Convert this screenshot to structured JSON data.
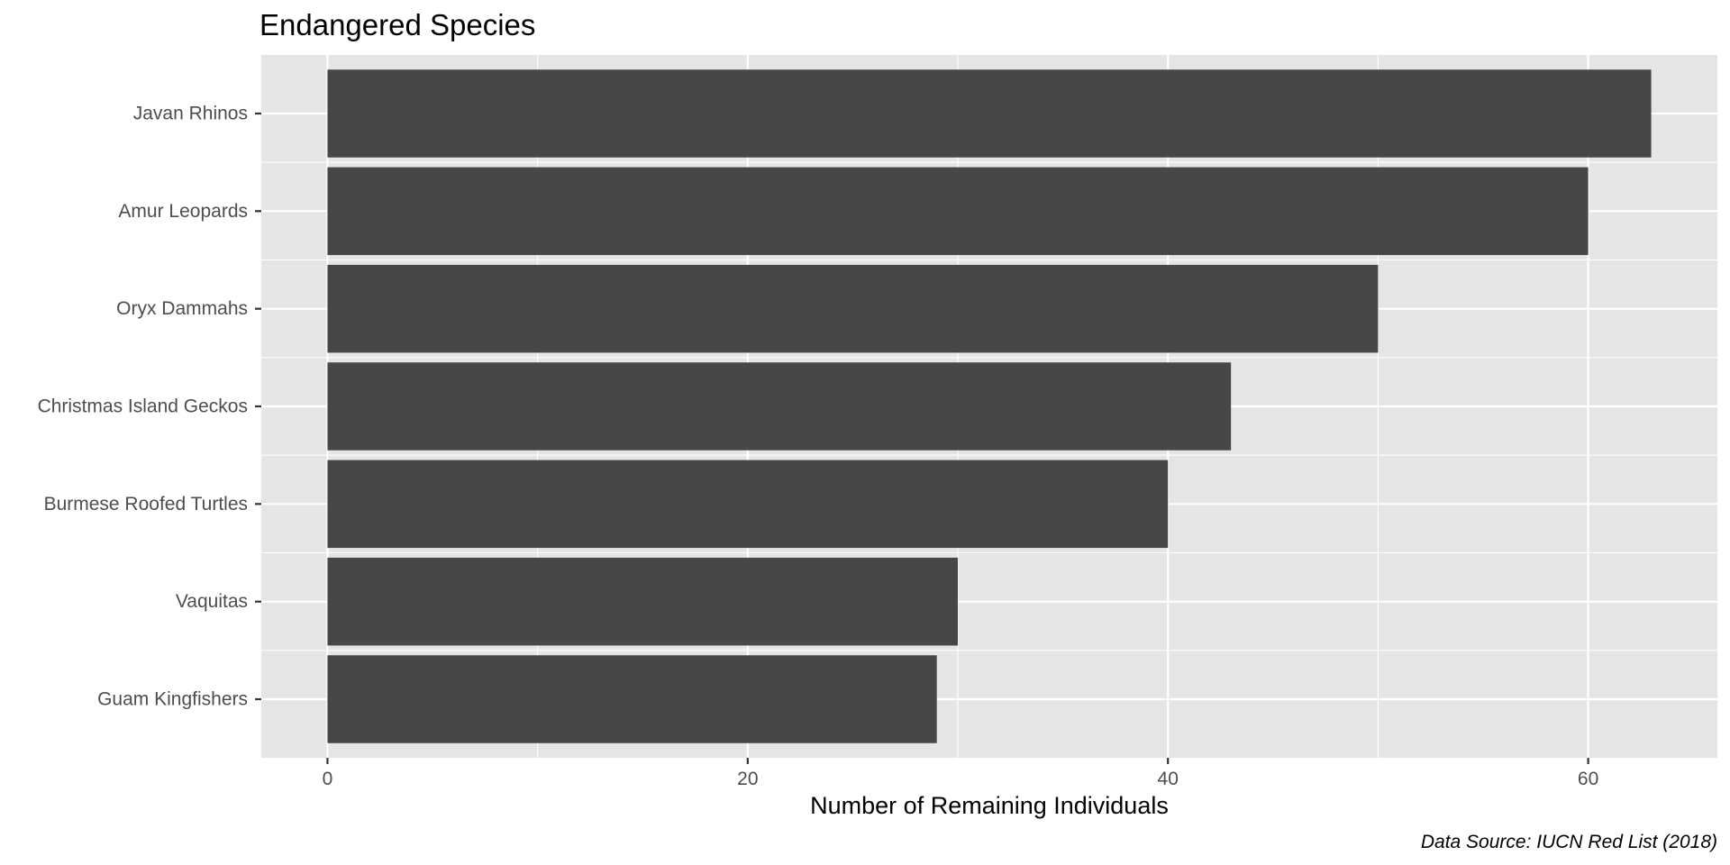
{
  "chart_data": {
    "type": "bar",
    "orientation": "horizontal",
    "title": "Endangered Species",
    "xlabel": "Number of Remaining Individuals",
    "ylabel": "",
    "caption": "Data Source: IUCN Red List (2018)",
    "categories": [
      "Javan Rhinos",
      "Amur Leopards",
      "Oryx Dammahs",
      "Christmas Island Geckos",
      "Burmese Roofed Turtles",
      "Vaquitas",
      "Guam Kingfishers"
    ],
    "values": [
      63,
      60,
      50,
      43,
      40,
      30,
      29
    ],
    "xlim": [
      -3.15,
      66.15
    ],
    "x_ticks": [
      0,
      20,
      40,
      60
    ],
    "grid": true,
    "legend": "none",
    "colors": {
      "panel_background": "#e5e5e5",
      "grid_line": "#ffffff",
      "bar_fill": "#474747",
      "tick_mark": "#333333"
    }
  }
}
